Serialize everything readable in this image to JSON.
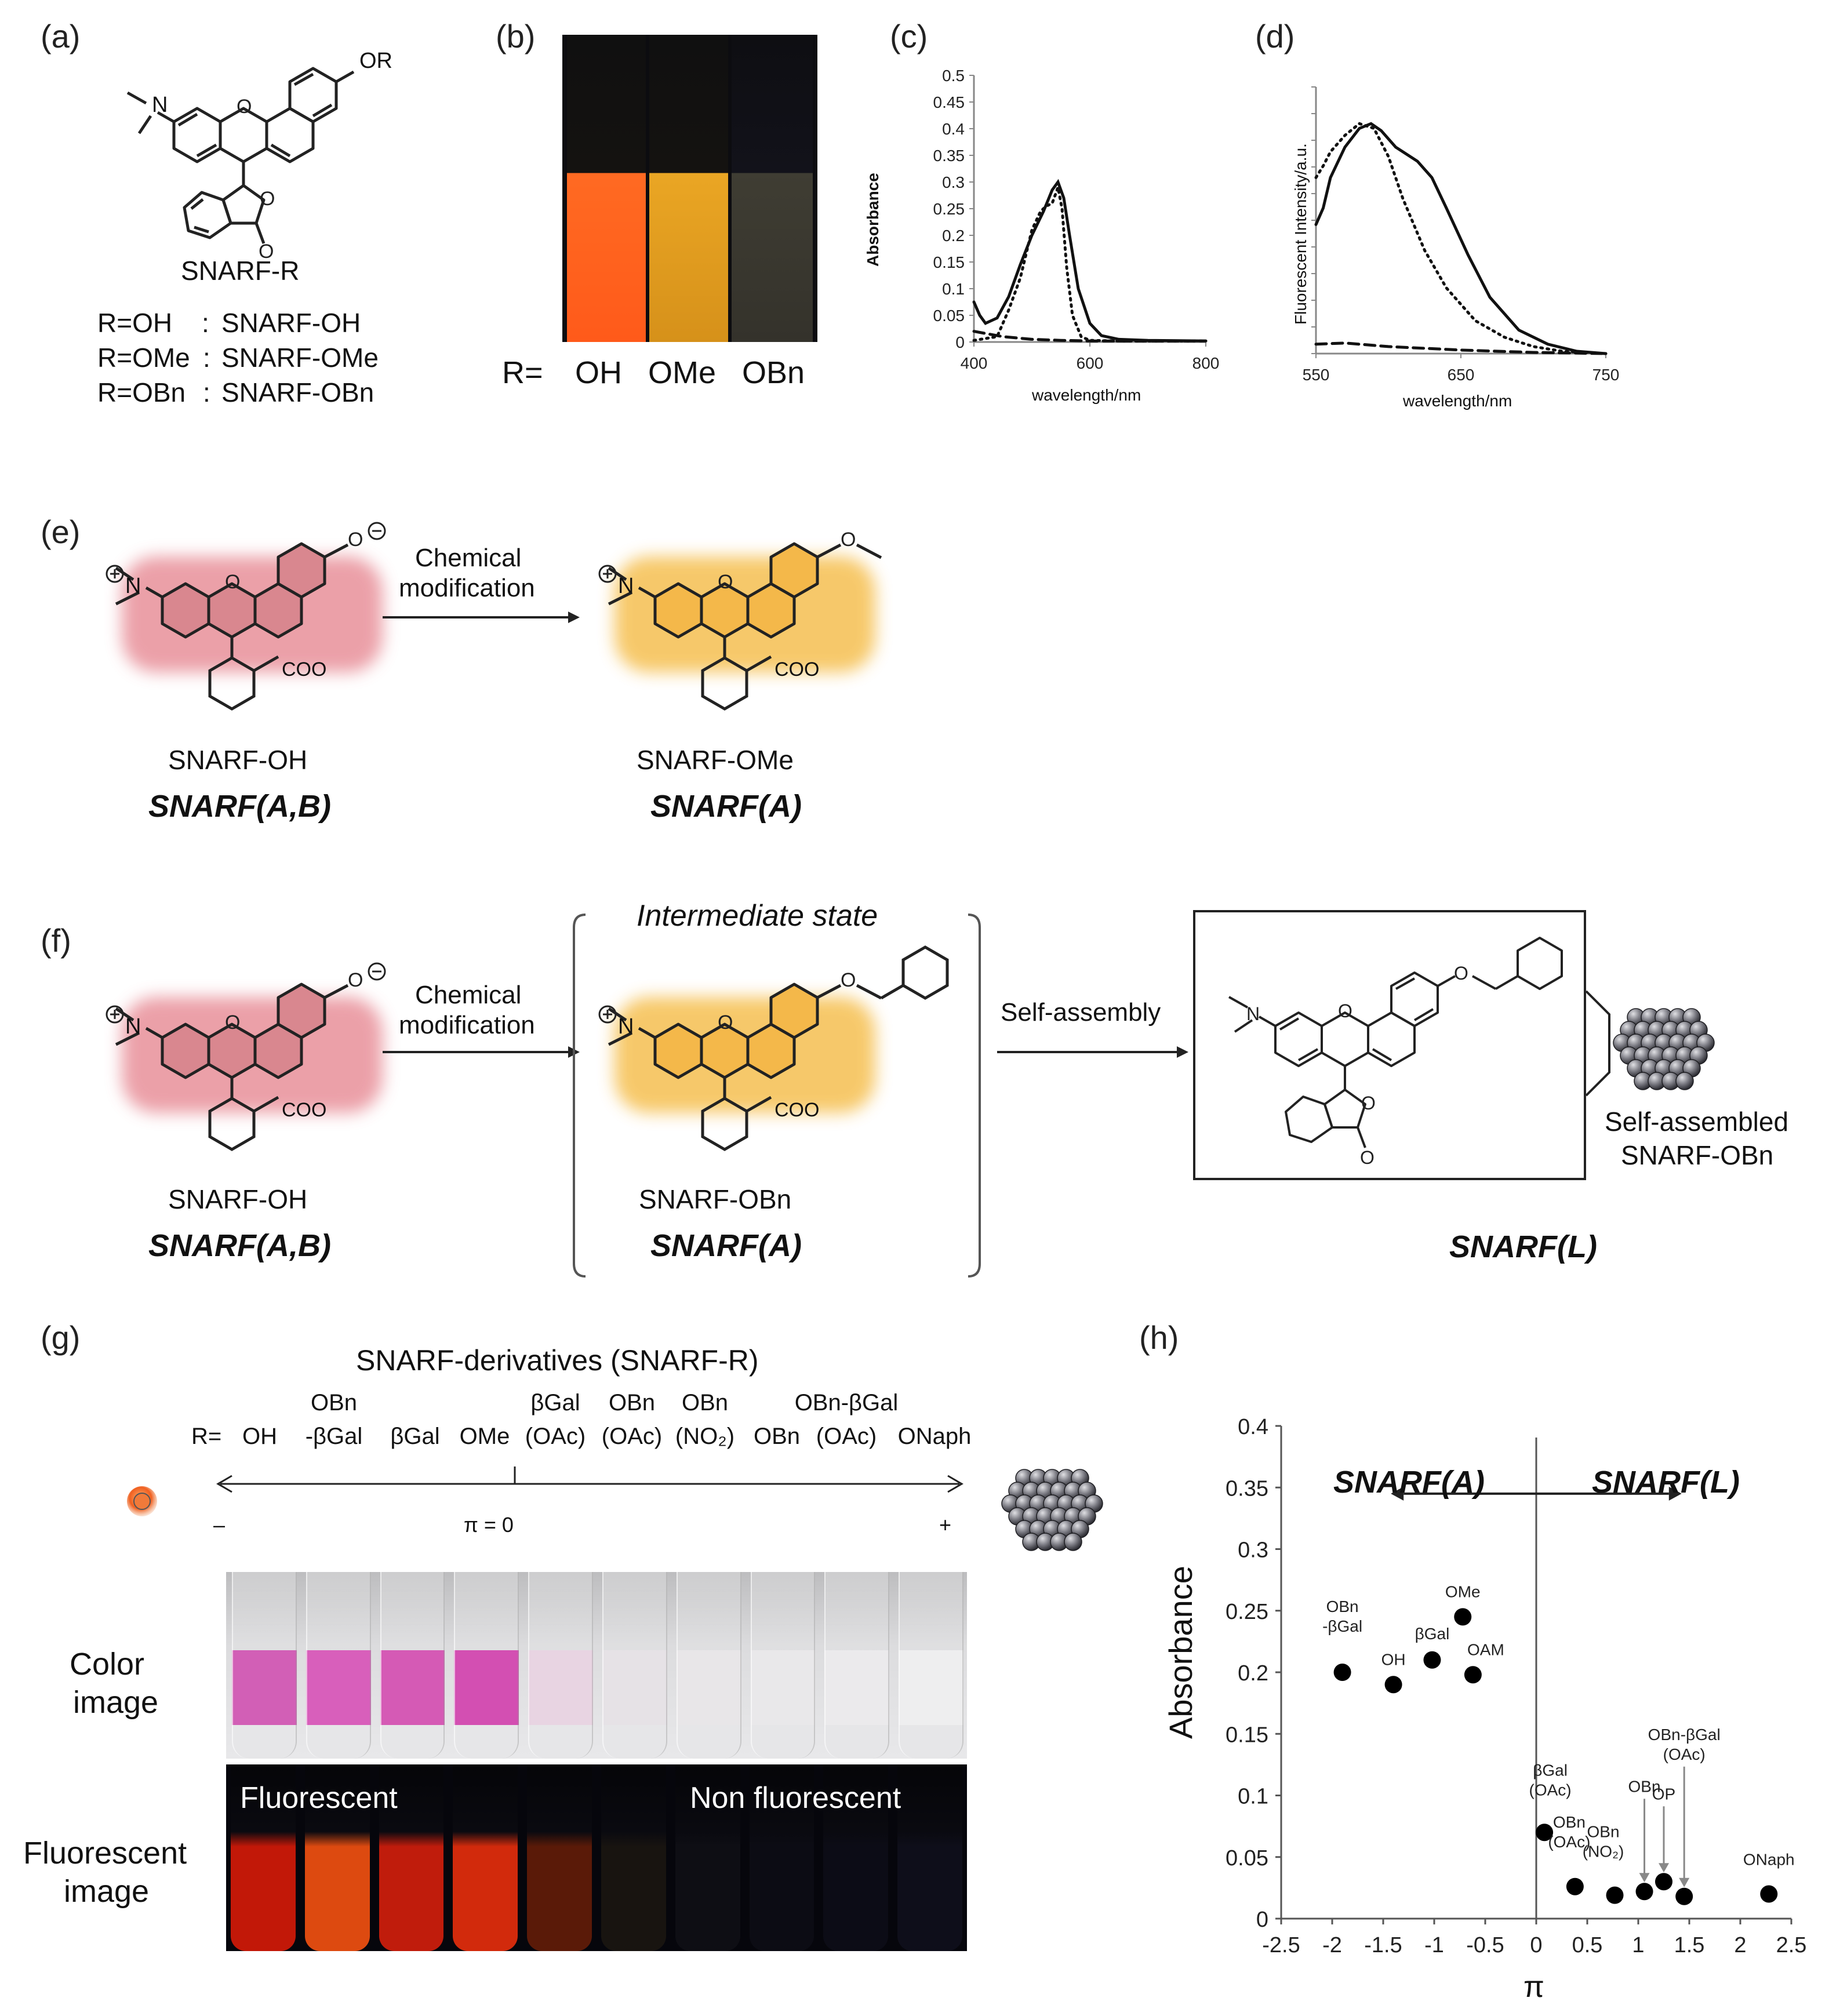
{
  "panels": {
    "a": "(a)",
    "b": "(b)",
    "c": "(c)",
    "d": "(d)",
    "e": "(e)",
    "f": "(f)",
    "g": "(g)",
    "h": "(h)"
  },
  "panel_a": {
    "substituent": "OR",
    "amine": "N",
    "name": "SNARF-R",
    "rows": [
      {
        "r": "R=OH",
        "sep": ":",
        "name": "SNARF-OH"
      },
      {
        "r": "R=OMe",
        "sep": ":",
        "name": "SNARF-OMe"
      },
      {
        "r": "R=OBn",
        "sep": ":",
        "name": "SNARF-OBn"
      }
    ]
  },
  "panel_b": {
    "prefix": "R=",
    "labels": [
      "OH",
      "OMe",
      "OBn"
    ],
    "colors": [
      "#ff5a1a",
      "#e8a21a",
      "#3c3a30"
    ]
  },
  "chart_c": {
    "type": "line",
    "ylabel": "Absorbance",
    "xlabel": "wavelength/nm",
    "xlim": [
      400,
      800
    ],
    "ylim": [
      0,
      0.5
    ],
    "xticks": [
      "400",
      "600",
      "800"
    ],
    "yticks": [
      "0",
      "0.05",
      "0.1",
      "0.15",
      "0.2",
      "0.25",
      "0.3",
      "0.35",
      "0.4",
      "0.45",
      "0.5"
    ],
    "series": [
      {
        "style": "solid",
        "x": [
          400,
          410,
          420,
          440,
          460,
          480,
          500,
          520,
          535,
          545,
          555,
          565,
          580,
          600,
          620,
          650,
          700,
          800
        ],
        "y": [
          0.075,
          0.05,
          0.035,
          0.045,
          0.085,
          0.145,
          0.2,
          0.245,
          0.285,
          0.3,
          0.27,
          0.2,
          0.1,
          0.035,
          0.012,
          0.005,
          0.003,
          0.002
        ]
      },
      {
        "style": "dotted",
        "x": [
          400,
          440,
          460,
          480,
          500,
          515,
          525,
          535,
          545,
          552,
          560,
          570,
          585,
          600,
          650,
          800
        ],
        "y": [
          0.003,
          0.01,
          0.06,
          0.12,
          0.21,
          0.245,
          0.255,
          0.26,
          0.29,
          0.25,
          0.14,
          0.05,
          0.01,
          0.003,
          0.002,
          0.002
        ]
      },
      {
        "style": "dashed",
        "x": [
          400,
          450,
          500,
          550,
          600,
          700,
          800
        ],
        "y": [
          0.02,
          0.01,
          0.005,
          0.003,
          0.002,
          0.002,
          0.002
        ]
      }
    ]
  },
  "chart_d": {
    "type": "line",
    "ylabel": "Fluorescent Intensity/a.u.",
    "xlabel": "wavelength/nm",
    "xlim": [
      550,
      750
    ],
    "ylim": [
      0,
      1
    ],
    "xticks": [
      "550",
      "650",
      "750"
    ],
    "series": [
      {
        "style": "solid",
        "x": [
          550,
          555,
          560,
          570,
          580,
          588,
          595,
          605,
          620,
          630,
          640,
          655,
          670,
          690,
          710,
          730,
          750
        ],
        "y": [
          0.55,
          0.62,
          0.75,
          0.88,
          0.96,
          0.98,
          0.95,
          0.88,
          0.82,
          0.75,
          0.62,
          0.42,
          0.24,
          0.1,
          0.04,
          0.01,
          0.0
        ]
      },
      {
        "style": "dotted",
        "x": [
          550,
          555,
          560,
          570,
          580,
          590,
          600,
          610,
          625,
          640,
          660,
          680,
          700,
          720,
          750
        ],
        "y": [
          0.75,
          0.8,
          0.86,
          0.93,
          0.98,
          0.96,
          0.84,
          0.66,
          0.44,
          0.28,
          0.14,
          0.07,
          0.03,
          0.01,
          0.0
        ]
      },
      {
        "style": "dashed",
        "x": [
          550,
          570,
          600,
          650,
          700,
          750
        ],
        "y": [
          0.04,
          0.045,
          0.03,
          0.015,
          0.005,
          0.0
        ]
      }
    ]
  },
  "panel_e": {
    "left_name": "SNARF-OH",
    "left_class": "SNARF(A,B)",
    "arrow_label_1": "Chemical",
    "arrow_label_2": "modification",
    "right_name": "SNARF-OMe",
    "right_class": "SNARF(A)",
    "coo": "COO",
    "n_plus": "N"
  },
  "panel_f": {
    "left_name": "SNARF-OH",
    "left_class": "SNARF(A,B)",
    "arrow1_1": "Chemical",
    "arrow1_2": "modification",
    "bracket_title": "Intermediate state",
    "mid_name": "SNARF-OBn",
    "mid_class": "SNARF(A)",
    "arrow2": "Self-assembly",
    "assembled_1": "Self-assembled",
    "assembled_2": "SNARF-OBn",
    "right_class": "SNARF(L)"
  },
  "panel_g": {
    "title": "SNARF-derivatives (SNARF-R)",
    "prefix": "R=",
    "derivatives": [
      {
        "l1": "",
        "l2": "OH"
      },
      {
        "l1": "OBn",
        "l2": "-βGal"
      },
      {
        "l1": "",
        "l2": "βGal"
      },
      {
        "l1": "",
        "l2": "OMe"
      },
      {
        "l1": "βGal",
        "l2": "(OAc)"
      },
      {
        "l1": "OBn",
        "l2": "(OAc)"
      },
      {
        "l1": "OBn",
        "l2": "(NO₂)"
      },
      {
        "l1": "",
        "l2": "OBn"
      },
      {
        "l1": "OBn-βGal",
        "l2": "(OAc)"
      },
      {
        "l1": "",
        "l2": "ONaph"
      }
    ],
    "axis_minus": "–",
    "axis_zero": "π = 0",
    "axis_plus": "+",
    "row1_label_1": "Color",
    "row1_label_2": "image",
    "row2_label_1": "Fluorescent",
    "row2_label_2": "image",
    "fluor_text": "Fluorescent",
    "nonfluor_text": "Non fluorescent",
    "color_tubes": [
      "#d25fb6",
      "#d85fbb",
      "#d55ab5",
      "#d34fb2",
      "#e8d4e2",
      "#e6e2e6",
      "#e8e6e8",
      "#e9e8ea",
      "#ebeaec",
      "#eeeeef"
    ],
    "fluor_tubes": [
      "#c21808",
      "#dd4a10",
      "#c01c0c",
      "#d22a0c",
      "#5a1a08",
      "#181410",
      "#0e0e14",
      "#0c0c14",
      "#0c0c16",
      "#0e0e1a"
    ]
  },
  "chart_data": {
    "type": "scatter",
    "xlabel": "π",
    "ylabel": "Absorbance",
    "xlim": [
      -2.5,
      2.5
    ],
    "ylim": [
      0,
      0.4
    ],
    "xticks": [
      "-2.5",
      "-2",
      "-1.5",
      "-1",
      "-0.5",
      "0",
      "0.5",
      "1",
      "1.5",
      "2",
      "2.5"
    ],
    "yticks": [
      "0",
      "0.05",
      "0.1",
      "0.15",
      "0.2",
      "0.25",
      "0.3",
      "0.35",
      "0.4"
    ],
    "left_region": "SNARF(A)",
    "right_region": "SNARF(L)",
    "points": [
      {
        "x": -1.9,
        "y": 0.2,
        "label": "OBn\n-βGal"
      },
      {
        "x": -1.4,
        "y": 0.19,
        "label": "OH"
      },
      {
        "x": -1.02,
        "y": 0.21,
        "label": "βGal"
      },
      {
        "x": -0.72,
        "y": 0.245,
        "label": "OMe"
      },
      {
        "x": -0.62,
        "y": 0.198,
        "label": "OAM"
      },
      {
        "x": 0.08,
        "y": 0.07,
        "label": "βGal\n(OAc)"
      },
      {
        "x": 0.38,
        "y": 0.026,
        "label": "OBn\n(OAc)"
      },
      {
        "x": 0.77,
        "y": 0.019,
        "label": "OBn\n(NO₂)"
      },
      {
        "x": 1.06,
        "y": 0.022,
        "label": "OBn"
      },
      {
        "x": 1.25,
        "y": 0.03,
        "label": "OP"
      },
      {
        "x": 1.45,
        "y": 0.018,
        "label": "OBn-βGal\n(OAc)"
      },
      {
        "x": 2.28,
        "y": 0.02,
        "label": "ONaph"
      }
    ]
  }
}
